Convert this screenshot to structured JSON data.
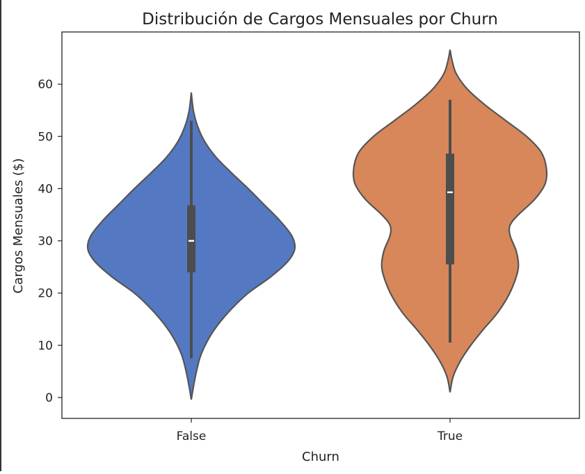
{
  "chart_data": {
    "type": "violin",
    "title": "Distribución de Cargos Mensuales por Churn",
    "xlabel": "Churn",
    "ylabel": "Cargos Mensuales ($)",
    "categories": [
      "False",
      "True"
    ],
    "ylim": [
      -4,
      70
    ],
    "yticks": [
      0,
      10,
      20,
      30,
      40,
      50,
      60
    ],
    "grid": false,
    "series": [
      {
        "category": "False",
        "color": "#5479c2",
        "range": [
          -0.4,
          58.4
        ],
        "whiskers": [
          7.5,
          53
        ],
        "quartiles": [
          24,
          36.8
        ],
        "median": 30,
        "density": [
          [
            -0.4,
            0.0
          ],
          [
            2,
            0.02
          ],
          [
            5,
            0.05
          ],
          [
            8,
            0.09
          ],
          [
            11,
            0.16
          ],
          [
            14,
            0.26
          ],
          [
            17,
            0.39
          ],
          [
            20,
            0.55
          ],
          [
            23,
            0.76
          ],
          [
            26,
            0.93
          ],
          [
            28.5,
            1.0
          ],
          [
            31,
            0.97
          ],
          [
            34,
            0.85
          ],
          [
            37,
            0.7
          ],
          [
            40,
            0.55
          ],
          [
            43,
            0.39
          ],
          [
            46,
            0.24
          ],
          [
            49,
            0.13
          ],
          [
            52,
            0.06
          ],
          [
            55,
            0.02
          ],
          [
            58.4,
            0.0
          ]
        ]
      },
      {
        "category": "True",
        "color": "#d8875a",
        "range": [
          1,
          66.6
        ],
        "whiskers": [
          10.5,
          57
        ],
        "quartiles": [
          25.5,
          46.7
        ],
        "median": 39.3,
        "density": [
          [
            1,
            0.0
          ],
          [
            4,
            0.03
          ],
          [
            7,
            0.1
          ],
          [
            10,
            0.2
          ],
          [
            13,
            0.32
          ],
          [
            16,
            0.45
          ],
          [
            19,
            0.55
          ],
          [
            22,
            0.62
          ],
          [
            25,
            0.66
          ],
          [
            28,
            0.64
          ],
          [
            31,
            0.58
          ],
          [
            33,
            0.58
          ],
          [
            35,
            0.66
          ],
          [
            38,
            0.82
          ],
          [
            41,
            0.92
          ],
          [
            44,
            0.93
          ],
          [
            47,
            0.88
          ],
          [
            50,
            0.74
          ],
          [
            53,
            0.54
          ],
          [
            56,
            0.34
          ],
          [
            59,
            0.17
          ],
          [
            62,
            0.06
          ],
          [
            64.5,
            0.02
          ],
          [
            66.6,
            0.0
          ]
        ]
      }
    ]
  }
}
